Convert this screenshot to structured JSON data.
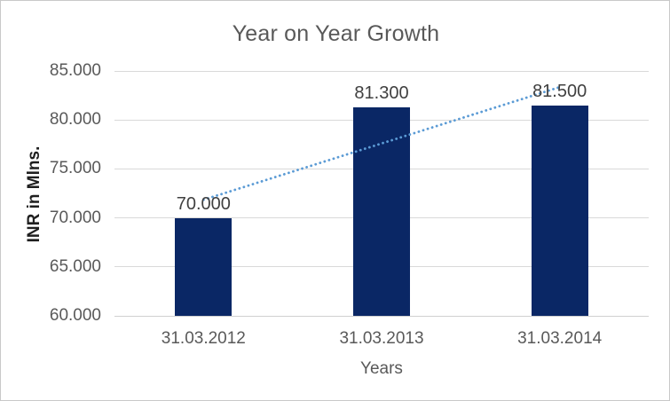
{
  "chart_data": {
    "type": "bar",
    "title": "Year on Year Growth",
    "categories": [
      "31.03.2012",
      "31.03.2013",
      "31.03.2014"
    ],
    "values": [
      70000,
      81300,
      81500
    ],
    "data_labels": [
      "70.000",
      "81.300",
      "81.500"
    ],
    "xlabel": "Years",
    "ylabel": "INR in Mlns.",
    "ylim": [
      60000,
      85000
    ],
    "ytick_step": 5000,
    "ytick_labels": [
      "85.000",
      "80.000",
      "75.000",
      "70.000",
      "65.000",
      "60.000"
    ],
    "grid": true,
    "legend": "none",
    "bar_color": "#0A2765",
    "trendline": {
      "type": "linear",
      "style": "dotted",
      "color": "#5B9BD5",
      "values": [
        71850,
        77600,
        83350
      ]
    },
    "colors": {
      "title_text": "#595959",
      "tick_text": "#595959",
      "data_label_text": "#404040",
      "axis_title_text": "#1F1F1F",
      "gridline": "#D9D9D9",
      "axis_line": "#D0D0D0",
      "background": "#FFFFFF",
      "border": "#C9C9C9"
    }
  }
}
